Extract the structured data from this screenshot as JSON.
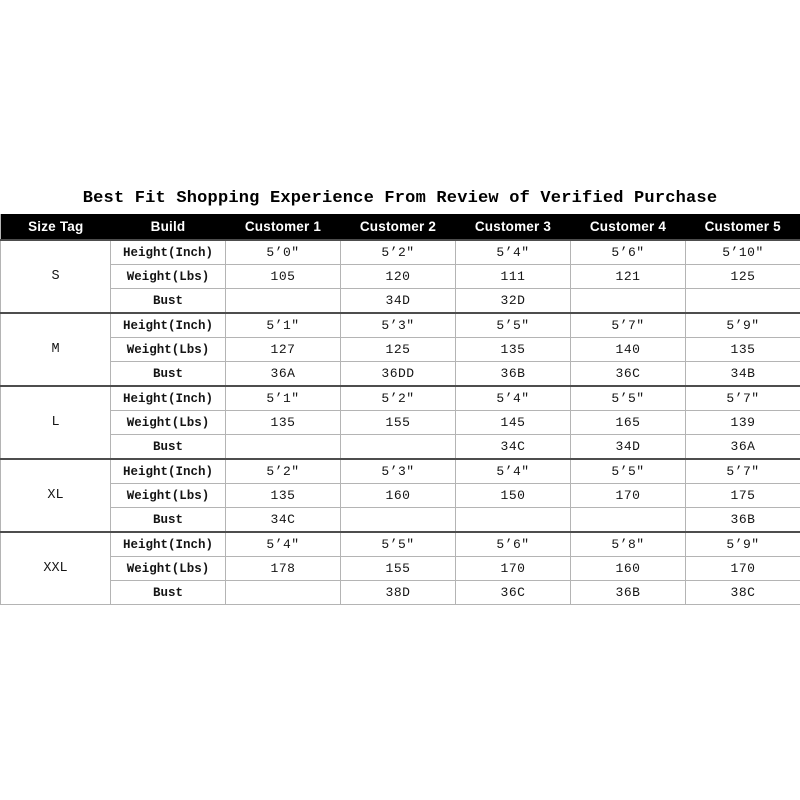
{
  "title": "Best Fit Shopping Experience From Review of Verified Purchase",
  "colors": {
    "background": "#ffffff",
    "header_bg": "#000000",
    "header_text": "#ffffff",
    "grid_line": "#b4b4b4",
    "section_line": "#4d4d4d",
    "body_text": "#141414"
  },
  "chart_data": {
    "type": "table",
    "title": "Best Fit Shopping Experience From Review of Verified Purchase",
    "columns": [
      "Size Tag",
      "Build",
      "Customer 1",
      "Customer 2",
      "Customer 3",
      "Customer 4",
      "Customer 5"
    ],
    "build_rows": [
      "Height(Inch)",
      "Weight(Lbs)",
      "Bust"
    ],
    "sections": [
      {
        "size": "S",
        "height": [
          "5’0″",
          "5’2″",
          "5’4″",
          "5’6″",
          "5’10″"
        ],
        "weight": [
          "105",
          "120",
          "111",
          "121",
          "125"
        ],
        "bust": [
          "",
          "34D",
          "32D",
          "",
          ""
        ]
      },
      {
        "size": "M",
        "height": [
          "5’1″",
          "5’3″",
          "5’5″",
          "5’7″",
          "5’9″"
        ],
        "weight": [
          "127",
          "125",
          "135",
          "140",
          "135"
        ],
        "bust": [
          "36A",
          "36DD",
          "36B",
          "36C",
          "34B"
        ]
      },
      {
        "size": "L",
        "height": [
          "5’1″",
          "5’2″",
          "5’4″",
          "5’5″",
          "5’7″"
        ],
        "weight": [
          "135",
          "155",
          "145",
          "165",
          "139"
        ],
        "bust": [
          "",
          "",
          "34C",
          "34D",
          "36A"
        ]
      },
      {
        "size": "XL",
        "height": [
          "5’2″",
          "5’3″",
          "5’4″",
          "5’5″",
          "5’7″"
        ],
        "weight": [
          "135",
          "160",
          "150",
          "170",
          "175"
        ],
        "bust": [
          "34C",
          "",
          "",
          "",
          "36B"
        ]
      },
      {
        "size": "XXL",
        "height": [
          "5’4″",
          "5’5″",
          "5’6″",
          "5’8″",
          "5’9″"
        ],
        "weight": [
          "178",
          "155",
          "170",
          "160",
          "170"
        ],
        "bust": [
          "",
          "38D",
          "36C",
          "36B",
          "38C"
        ]
      }
    ]
  }
}
